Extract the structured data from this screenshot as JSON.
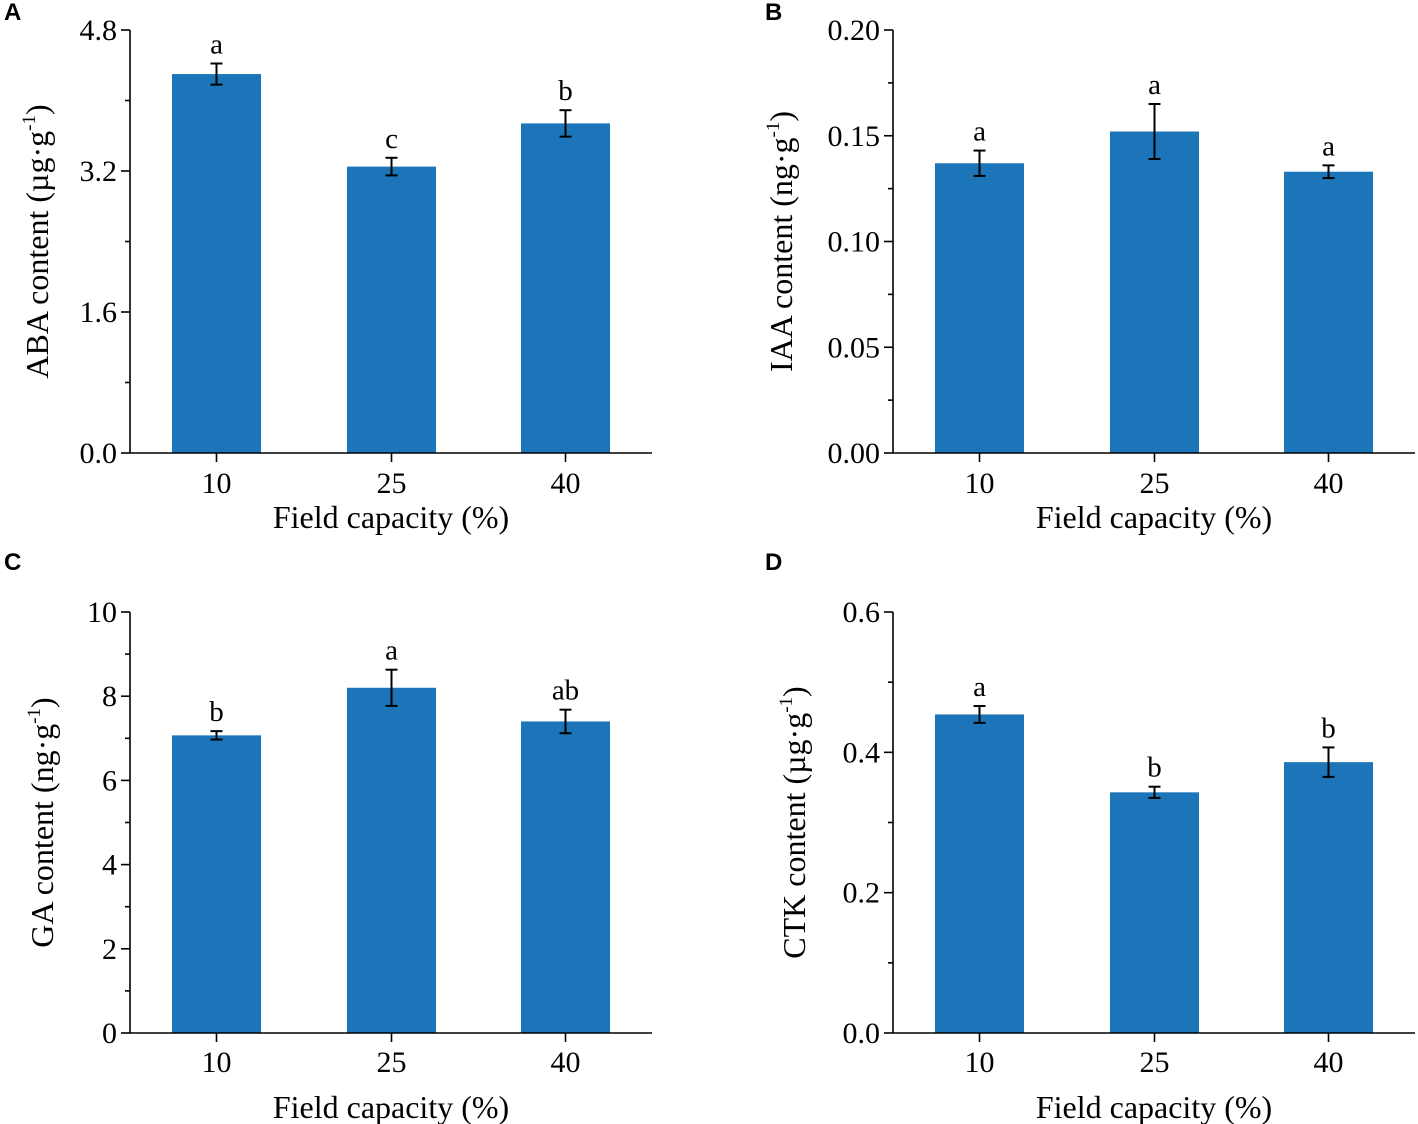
{
  "colors": {
    "bar": "#1b75b8",
    "axis": "#000000"
  },
  "chart_data": [
    {
      "type": "bar",
      "panel": "A",
      "categories": [
        "10",
        "25",
        "40"
      ],
      "values": [
        4.3,
        3.25,
        3.74
      ],
      "errors": [
        0.12,
        0.1,
        0.15
      ],
      "significance": [
        "a",
        "c",
        "b"
      ],
      "ylim": [
        0,
        4.8
      ],
      "yticks": [
        0,
        1.6,
        3.2,
        4.8
      ],
      "ytick_labels": [
        "0.0",
        "1.6",
        "3.2",
        "4.8"
      ],
      "xlabel": "Field capacity (%)",
      "ylabel": {
        "base": "ABA content (µg·g",
        "sup": "-1",
        "close": ")"
      }
    },
    {
      "type": "bar",
      "panel": "B",
      "categories": [
        "10",
        "25",
        "40"
      ],
      "values": [
        0.137,
        0.152,
        0.133
      ],
      "errors": [
        0.006,
        0.013,
        0.003
      ],
      "significance": [
        "a",
        "a",
        "a"
      ],
      "ylim": [
        0,
        0.2
      ],
      "yticks": [
        0,
        0.05,
        0.1,
        0.15,
        0.2
      ],
      "ytick_labels": [
        "0.00",
        "0.05",
        "0.10",
        "0.15",
        "0.20"
      ],
      "xlabel": "Field capacity (%)",
      "ylabel": {
        "base": "IAA content (ng·g",
        "sup": "-1",
        "close": ")"
      }
    },
    {
      "type": "bar",
      "panel": "C",
      "categories": [
        "10",
        "25",
        "40"
      ],
      "values": [
        7.07,
        8.2,
        7.4
      ],
      "errors": [
        0.1,
        0.43,
        0.28
      ],
      "significance": [
        "b",
        "a",
        "ab"
      ],
      "ylim": [
        0,
        10
      ],
      "yticks": [
        0,
        2,
        4,
        6,
        8,
        10
      ],
      "ytick_labels": [
        "0",
        "2",
        "4",
        "6",
        "8",
        "10"
      ],
      "xlabel": "Field capacity (%)",
      "ylabel": {
        "base": "GA content (ng·g",
        "sup": "-1",
        "close": ")"
      }
    },
    {
      "type": "bar",
      "panel": "D",
      "categories": [
        "10",
        "25",
        "40"
      ],
      "values": [
        0.454,
        0.343,
        0.386
      ],
      "errors": [
        0.012,
        0.008,
        0.021
      ],
      "significance": [
        "a",
        "b",
        "b"
      ],
      "ylim": [
        0,
        0.6
      ],
      "yticks": [
        0,
        0.2,
        0.4,
        0.6
      ],
      "ytick_labels": [
        "0.0",
        "0.2",
        "0.4",
        "0.6"
      ],
      "xlabel": "Field capacity (%)",
      "ylabel": {
        "base": "CTK content (µg·g",
        "sup": "-1",
        "close": ")"
      }
    }
  ]
}
